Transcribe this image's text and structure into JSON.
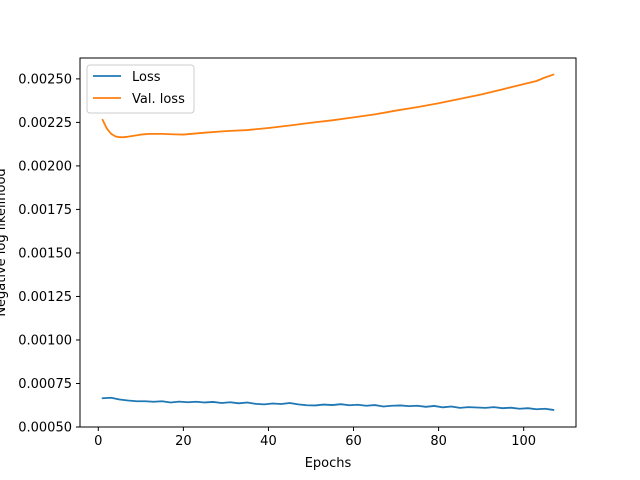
{
  "chart_data": {
    "type": "line",
    "title": "",
    "xlabel": "Epochs",
    "ylabel": "Negative log likelihood",
    "xlim": [
      -4.3,
      112.3
    ],
    "ylim": [
      0.0005,
      0.00262
    ],
    "xticks": [
      0,
      20,
      40,
      60,
      80,
      100
    ],
    "yticks": [
      0.0005,
      0.00075,
      0.001,
      0.00125,
      0.0015,
      0.00175,
      0.002,
      0.00225,
      0.0025
    ],
    "ytick_labels": [
      "0.00050",
      "0.00075",
      "0.00100",
      "0.00125",
      "0.00150",
      "0.00175",
      "0.00200",
      "0.00225",
      "0.00250"
    ],
    "grid": false,
    "legend_position": "top-left",
    "series": [
      {
        "name": "Loss",
        "color": "#1f77b4",
        "x": [
          1,
          3,
          5,
          7,
          9,
          11,
          13,
          15,
          17,
          19,
          21,
          23,
          25,
          27,
          29,
          31,
          33,
          35,
          37,
          39,
          41,
          43,
          45,
          47,
          49,
          51,
          53,
          55,
          57,
          59,
          61,
          63,
          65,
          67,
          69,
          71,
          73,
          75,
          77,
          79,
          81,
          83,
          85,
          87,
          89,
          91,
          93,
          95,
          97,
          99,
          101,
          103,
          105,
          107
        ],
        "values": [
          0.000665,
          0.000668,
          0.000658,
          0.000652,
          0.000648,
          0.000648,
          0.000645,
          0.000648,
          0.000641,
          0.000646,
          0.000642,
          0.000645,
          0.000641,
          0.000644,
          0.000638,
          0.000642,
          0.000636,
          0.000641,
          0.000633,
          0.00063,
          0.000635,
          0.000632,
          0.000638,
          0.00063,
          0.000625,
          0.000624,
          0.000629,
          0.000626,
          0.000631,
          0.000625,
          0.000628,
          0.000622,
          0.000626,
          0.000618,
          0.000622,
          0.000624,
          0.00062,
          0.000622,
          0.000616,
          0.000621,
          0.000613,
          0.000618,
          0.00061,
          0.000614,
          0.000612,
          0.00061,
          0.000614,
          0.000608,
          0.000611,
          0.000605,
          0.000608,
          0.000602,
          0.000605,
          0.000598
        ]
      },
      {
        "name": "Val. loss",
        "color": "#ff7f0e",
        "x": [
          1,
          2,
          3,
          4,
          5,
          6,
          7,
          8,
          10,
          12,
          15,
          18,
          20,
          25,
          30,
          35,
          40,
          45,
          50,
          55,
          60,
          65,
          70,
          75,
          80,
          85,
          90,
          95,
          100,
          103,
          105,
          107
        ],
        "values": [
          0.002265,
          0.002215,
          0.002185,
          0.00217,
          0.002165,
          0.002165,
          0.002168,
          0.002172,
          0.00218,
          0.002184,
          0.002184,
          0.002181,
          0.00218,
          0.002191,
          0.0022,
          0.002206,
          0.002218,
          0.002232,
          0.002248,
          0.002262,
          0.002279,
          0.002296,
          0.002318,
          0.002338,
          0.00236,
          0.002385,
          0.00241,
          0.00244,
          0.00247,
          0.002488,
          0.002508,
          0.002525
        ]
      }
    ]
  }
}
